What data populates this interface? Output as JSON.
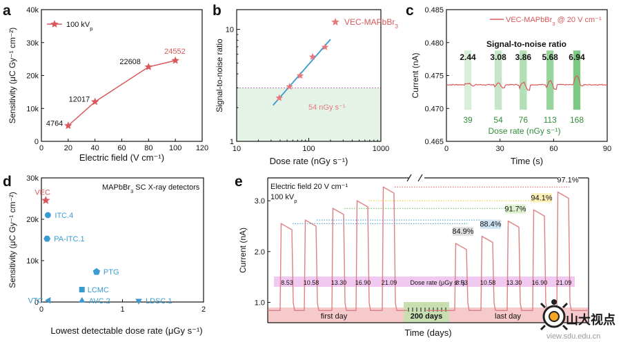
{
  "panels": {
    "a": "a",
    "b": "b",
    "c": "c",
    "d": "d",
    "e": "e"
  },
  "colors": {
    "red": "#d8585c",
    "blue": "#3a9bd0",
    "green": "#5dbb63",
    "pink": "#f4a9ab",
    "purple": "#e8b4e6",
    "axis": "#111111"
  },
  "watermark": {
    "text": "山大视点",
    "url": "view.sdu.edu.cn"
  },
  "chart_data": [
    {
      "panel": "a",
      "type": "line",
      "xlabel": "Electric field (V cm⁻¹)",
      "ylabel": "Sensitivity (μC Gy⁻¹ cm⁻²)",
      "xlim": [
        0,
        120
      ],
      "ylim": [
        0,
        40000
      ],
      "xticks": [
        0,
        20,
        40,
        60,
        80,
        100,
        120
      ],
      "yticks": [
        {
          "v": 0,
          "label": "0"
        },
        {
          "v": 10000,
          "label": "10k"
        },
        {
          "v": 20000,
          "label": "20k"
        },
        {
          "v": 30000,
          "label": "30k"
        },
        {
          "v": 40000,
          "label": "40k"
        }
      ],
      "legend": "100 kV",
      "legend_sub": "p",
      "x": [
        20,
        40,
        80,
        100
      ],
      "y": [
        4764,
        12017,
        22608,
        24552
      ],
      "labels": [
        "4764",
        "12017",
        "22608",
        "24552"
      ]
    },
    {
      "panel": "b",
      "type": "scatter",
      "xlabel": "Dose rate (nGy s⁻¹)",
      "ylabel": "Signal-to-noise ratio",
      "xscale": "log",
      "yscale": "log",
      "xlim": [
        10,
        1000
      ],
      "ylim": [
        1,
        15
      ],
      "xticks": [
        {
          "v": 10,
          "label": "10"
        },
        {
          "v": 100,
          "label": "100"
        },
        {
          "v": 1000,
          "label": "1000"
        }
      ],
      "yticks": [
        {
          "v": 1,
          "label": "1"
        },
        {
          "v": 10,
          "label": "10"
        }
      ],
      "legend": "VEC-MAPbBr",
      "legend_sub": "3",
      "x": [
        39,
        54,
        76,
        113,
        168
      ],
      "y": [
        2.44,
        3.08,
        3.86,
        5.68,
        6.94
      ],
      "fit_x": [
        32,
        200
      ],
      "snr_threshold": 3,
      "annotation": "54 nGy s⁻¹"
    },
    {
      "panel": "c",
      "type": "line",
      "xlabel": "Time (s)",
      "ylabel": "Current (nA)",
      "xlim": [
        0,
        90
      ],
      "ylim": [
        0.465,
        0.485
      ],
      "xticks": [
        0,
        30,
        60,
        90
      ],
      "yticks": [
        0.465,
        0.47,
        0.475,
        0.48,
        0.485
      ],
      "ytick_labels": [
        "0.465",
        "0.470",
        "0.475",
        "0.480",
        "0.485"
      ],
      "legend": "VEC-MAPbBr",
      "legend_sub": "3",
      "legend_tail": " @ 20 V cm⁻¹",
      "snr_title": "Signal-to-noise ratio",
      "snr_values": [
        "2.44",
        "3.08",
        "3.86",
        "5.68",
        "6.94"
      ],
      "dose_values": [
        "39",
        "54",
        "76",
        "113",
        "168"
      ],
      "dose_label": "Dose rate (nGy s⁻¹)",
      "on_windows": [
        [
          10,
          14
        ],
        [
          27,
          31
        ],
        [
          41,
          45
        ],
        [
          56,
          60
        ],
        [
          71,
          75
        ]
      ],
      "baseline": 0.4736,
      "steps": [
        0.4736,
        0.4733,
        0.473,
        0.4731,
        0.4736
      ],
      "peaks": [
        0.4738,
        0.4738,
        0.474,
        0.4742,
        0.475
      ]
    },
    {
      "panel": "d",
      "type": "scatter",
      "title": "MAPbBr",
      "title_sub": "3",
      "title_tail": " SC X-ray detectors",
      "xlabel": "Lowest detectable dose rate (μGy s⁻¹)",
      "ylabel": "Sensitivity (μC Gy⁻¹ cm⁻²)",
      "xlim": [
        0,
        2
      ],
      "ylim": [
        0,
        30000
      ],
      "xticks": [
        {
          "v": 0,
          "label": "0"
        },
        {
          "v": 1,
          "label": "1"
        },
        {
          "v": 2,
          "label": "2"
        }
      ],
      "yticks": [
        {
          "v": 0,
          "label": "0"
        },
        {
          "v": 10000,
          "label": "10k"
        },
        {
          "v": 20000,
          "label": "20k"
        },
        {
          "v": 30000,
          "label": "30k"
        }
      ],
      "points": [
        {
          "name": "VEC",
          "x": 0.054,
          "y": 24552,
          "marker": "star"
        },
        {
          "name": "ITC.4",
          "x": 0.08,
          "y": 21000,
          "marker": "circle"
        },
        {
          "name": "PA-ITC.1",
          "x": 0.07,
          "y": 15300,
          "marker": "hexagon"
        },
        {
          "name": "PTG",
          "x": 0.68,
          "y": 7300,
          "marker": "pentagon"
        },
        {
          "name": "LCMC",
          "x": 0.5,
          "y": 3000,
          "marker": "square"
        },
        {
          "name": "VTC",
          "x": 0.09,
          "y": 400,
          "marker": "triangle-left"
        },
        {
          "name": "AVC.2",
          "x": 0.5,
          "y": 300,
          "marker": "triangle-up"
        },
        {
          "name": "LDSC.1",
          "x": 1.2,
          "y": 300,
          "marker": "triangle-down"
        }
      ]
    },
    {
      "panel": "e",
      "type": "line",
      "xlabel": "Time (days)",
      "ylabel": "Current (nA)",
      "ylim": [
        0.6,
        3.45
      ],
      "yticks": [
        1.0,
        2.0,
        3.0
      ],
      "ytick_labels": [
        "1.0",
        "2.0",
        "3.0"
      ],
      "note1": "Electric field 20 V cm⁻¹",
      "note2": "100 kV",
      "note2_sub": "p",
      "dose_label": "Dose rate (μGy s⁻¹)",
      "dose_rates": [
        "8.53",
        "10.58",
        "13.30",
        "16.90",
        "21.09"
      ],
      "first_day_peaks": [
        2.55,
        2.62,
        2.85,
        3.0,
        3.27
      ],
      "last_day_peaks": [
        2.16,
        2.3,
        2.6,
        2.82,
        3.17
      ],
      "baseline": 0.84,
      "retention": [
        "84.9%",
        "88.4%",
        "91.7%",
        "94.1%",
        "97.1%"
      ],
      "first_day": "first day",
      "last_day": "last day",
      "gap_label": "200 days"
    }
  ]
}
